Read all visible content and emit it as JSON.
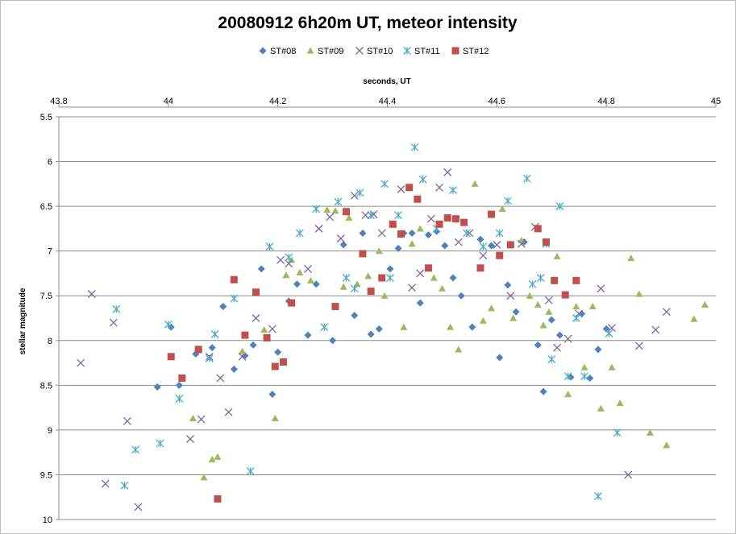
{
  "chart_data": {
    "type": "scatter",
    "title": "20080912 6h20m UT, meteor intensity",
    "xlabel": "seconds, UT",
    "ylabel": "stellar magnitude",
    "xlim": [
      43.8,
      45
    ],
    "ylim": [
      5.5,
      10
    ],
    "y_reversed": true,
    "x_axis_position": "top",
    "grid": "horizontal",
    "legend_position": "top",
    "x_ticks": [
      "43.8",
      "44",
      "44.2",
      "44.4",
      "44.6",
      "44.8",
      "45"
    ],
    "y_ticks": [
      "5.5",
      "6",
      "6.5",
      "7",
      "7.5",
      "8",
      "8.5",
      "9",
      "9.5",
      "10"
    ],
    "series": [
      {
        "name": "ST#08",
        "marker": "diamond",
        "color": "#4F81BD",
        "x": [
          43.98,
          44.005,
          44.02,
          44.05,
          44.08,
          44.1,
          44.12,
          44.14,
          44.155,
          44.17,
          44.19,
          44.2,
          44.22,
          44.235,
          44.255,
          44.27,
          44.3,
          44.32,
          44.34,
          44.355,
          44.37,
          44.385,
          44.405,
          44.42,
          44.43,
          44.445,
          44.46,
          44.475,
          44.49,
          44.505,
          44.52,
          44.535,
          44.555,
          44.57,
          44.59,
          44.605,
          44.62,
          44.635,
          44.65,
          44.675,
          44.685,
          44.7,
          44.715,
          44.735,
          44.755,
          44.77,
          44.785,
          44.8
        ],
        "y": [
          8.52,
          7.85,
          8.5,
          8.15,
          8.08,
          7.62,
          8.32,
          8.17,
          8.05,
          7.2,
          8.6,
          8.13,
          7.56,
          7.37,
          7.94,
          7.37,
          8.0,
          6.93,
          7.72,
          6.8,
          7.93,
          7.87,
          7.2,
          6.97,
          6.8,
          6.8,
          7.58,
          6.82,
          6.78,
          6.94,
          7.3,
          7.5,
          7.85,
          6.87,
          6.94,
          8.19,
          7.38,
          7.68,
          6.9,
          8.05,
          8.57,
          7.77,
          7.94,
          8.41,
          7.7,
          8.42,
          8.1,
          7.87
        ]
      },
      {
        "name": "ST#09",
        "marker": "triangle",
        "color": "#9BBB59",
        "x": [
          44.045,
          44.065,
          44.08,
          44.09,
          44.135,
          44.175,
          44.195,
          44.215,
          44.225,
          44.24,
          44.26,
          44.29,
          44.305,
          44.32,
          44.33,
          44.345,
          44.365,
          44.385,
          44.395,
          44.43,
          44.445,
          44.46,
          44.485,
          44.5,
          44.515,
          44.53,
          44.56,
          44.575,
          44.59,
          44.61,
          44.63,
          44.645,
          44.66,
          44.675,
          44.685,
          44.695,
          44.71,
          44.73,
          44.745,
          44.76,
          44.775,
          44.79,
          44.81,
          44.825,
          44.845,
          44.86,
          44.88,
          44.91,
          44.96,
          44.98
        ],
        "y": [
          8.87,
          9.53,
          9.33,
          9.3,
          8.12,
          7.88,
          8.87,
          7.27,
          7.1,
          7.24,
          7.33,
          6.54,
          6.55,
          7.4,
          6.63,
          7.37,
          7.28,
          7.0,
          7.5,
          7.85,
          6.92,
          6.75,
          7.3,
          7.42,
          7.85,
          8.1,
          6.25,
          7.78,
          7.64,
          6.53,
          7.75,
          6.88,
          7.5,
          7.6,
          7.83,
          7.68,
          7.06,
          8.6,
          7.62,
          8.3,
          7.62,
          8.76,
          8.3,
          8.7,
          7.08,
          7.48,
          9.03,
          9.17,
          7.76,
          7.6
        ]
      },
      {
        "name": "ST#10",
        "marker": "x",
        "color": "#8064A2",
        "x": [
          43.84,
          43.86,
          43.885,
          43.9,
          43.925,
          43.945,
          44.04,
          44.06,
          44.075,
          44.095,
          44.11,
          44.135,
          44.16,
          44.19,
          44.205,
          44.22,
          44.255,
          44.275,
          44.295,
          44.315,
          44.34,
          44.36,
          44.375,
          44.39,
          44.425,
          44.445,
          44.46,
          44.48,
          44.495,
          44.51,
          44.53,
          44.55,
          44.575,
          44.6,
          44.625,
          44.645,
          44.67,
          44.695,
          44.71,
          44.73,
          44.75,
          44.79,
          44.81,
          44.84,
          44.86,
          44.89,
          44.91
        ],
        "y": [
          8.25,
          7.48,
          9.6,
          7.8,
          8.9,
          9.86,
          9.1,
          8.88,
          8.18,
          8.42,
          8.8,
          8.18,
          7.75,
          7.87,
          7.1,
          7.14,
          7.2,
          6.75,
          6.62,
          6.86,
          6.38,
          6.6,
          6.59,
          6.8,
          6.31,
          7.41,
          7.25,
          6.64,
          6.29,
          6.12,
          6.9,
          6.8,
          7.05,
          6.93,
          7.5,
          6.92,
          6.73,
          7.55,
          8.08,
          7.98,
          7.7,
          7.42,
          7.86,
          9.5,
          8.06,
          7.88,
          7.68
        ]
      },
      {
        "name": "ST#11",
        "marker": "asterisk",
        "color": "#4BACC6",
        "x": [
          43.905,
          43.92,
          43.94,
          43.985,
          44.0,
          44.02,
          44.075,
          44.085,
          44.12,
          44.15,
          44.185,
          44.22,
          44.24,
          44.27,
          44.285,
          44.31,
          44.325,
          44.34,
          44.35,
          44.37,
          44.395,
          44.405,
          44.42,
          44.45,
          44.465,
          44.49,
          44.52,
          44.545,
          44.575,
          44.605,
          44.62,
          44.655,
          44.665,
          44.68,
          44.69,
          44.7,
          44.715,
          44.73,
          44.745,
          44.76,
          44.785,
          44.805,
          44.82
        ],
        "y": [
          7.65,
          9.62,
          9.22,
          9.15,
          7.82,
          8.65,
          8.2,
          7.93,
          7.53,
          9.46,
          6.95,
          7.07,
          6.8,
          6.53,
          7.85,
          6.45,
          7.3,
          7.42,
          6.35,
          6.6,
          6.25,
          7.3,
          6.6,
          5.84,
          6.2,
          6.75,
          6.32,
          6.8,
          6.95,
          6.8,
          6.44,
          6.19,
          7.37,
          7.3,
          6.92,
          8.21,
          6.5,
          8.4,
          7.75,
          8.4,
          9.74,
          7.92,
          9.03
        ]
      },
      {
        "name": "ST#12",
        "marker": "square",
        "color": "#C0504D",
        "x": [
          44.005,
          44.025,
          44.055,
          44.09,
          44.12,
          44.14,
          44.16,
          44.18,
          44.195,
          44.21,
          44.225,
          44.305,
          44.325,
          44.355,
          44.37,
          44.39,
          44.41,
          44.425,
          44.44,
          44.455,
          44.475,
          44.495,
          44.51,
          44.525,
          44.54,
          44.57,
          44.59,
          44.605,
          44.625,
          44.675,
          44.69,
          44.705,
          44.725,
          44.745
        ],
        "y": [
          8.18,
          8.42,
          8.1,
          9.77,
          7.32,
          7.94,
          7.46,
          7.97,
          8.29,
          8.24,
          7.58,
          7.62,
          6.56,
          7.03,
          7.45,
          7.3,
          6.7,
          6.81,
          6.29,
          6.42,
          7.19,
          6.7,
          6.63,
          6.64,
          6.68,
          7.19,
          6.59,
          7.05,
          6.93,
          6.75,
          6.9,
          7.33,
          7.49,
          7.33
        ]
      }
    ]
  }
}
